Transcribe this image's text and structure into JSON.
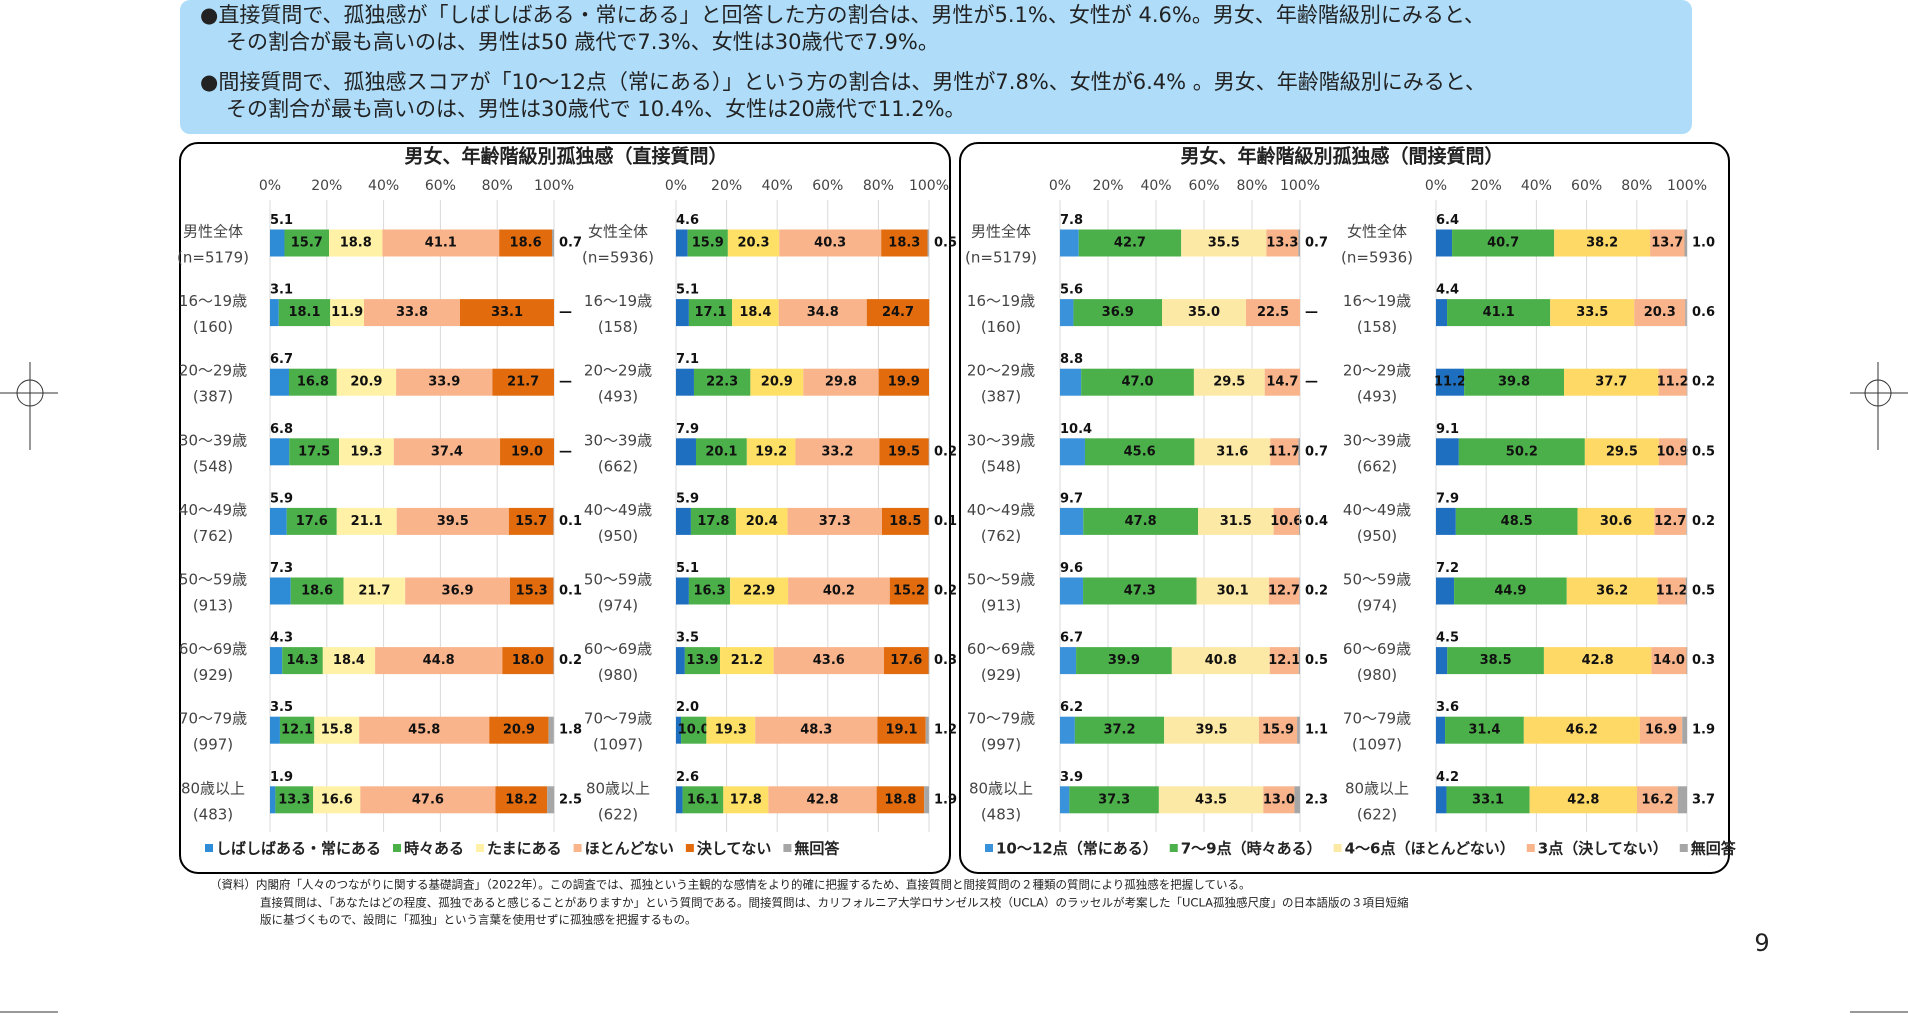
{
  "bullets": [
    [
      "●直接質問で、孤独感が「しばしばある・常にある」と回答した方の割合は、男性が5.1%、女性が 4.6%。男女、年齢階級別にみると、",
      "その割合が最も高いのは、男性は50 歳代で7.3%、女性は30歳代で7.9%。"
    ],
    [
      "●間接質問で、孤独感スコアが「10～12点（常にある）」という方の割合は、男性が7.8%、女性が6.4% 。男女、年齢階級別にみると、",
      "その割合が最も高いのは、男性は30歳代で 10.4%、女性は20歳代で11.2%。"
    ]
  ],
  "panels": [
    {
      "title": "男女、年齢階級別孤独感（直接質問）",
      "charts": [
        {
          "type": "bar",
          "orientation": "horizontal",
          "stacked": true,
          "xlim": [
            0,
            100
          ],
          "xticks": [
            {
              "value": 0,
              "label": "0%"
            },
            {
              "value": 20,
              "label": "20%"
            },
            {
              "value": 40,
              "label": "40%"
            },
            {
              "value": 60,
              "label": "60%"
            },
            {
              "value": 80,
              "label": "80%"
            },
            {
              "value": 100,
              "label": "100%"
            }
          ],
          "grid": true,
          "categories": [
            "男性全体",
            "16～19歳",
            "20～29歳",
            "30～39歳",
            "40～49歳",
            "50～59歳",
            "60～69歳",
            "70～79歳",
            "80歳以上"
          ],
          "sample_sizes": [
            "(n=5179)",
            "(160)",
            "(387)",
            "(548)",
            "(762)",
            "(913)",
            "(929)",
            "(997)",
            "(483)"
          ],
          "series": [
            {
              "name": "しばしばある・常にある",
              "color": "#2e8bd6",
              "values": [
                5.1,
                3.1,
                6.7,
                6.8,
                5.9,
                7.3,
                4.3,
                3.5,
                1.9
              ]
            },
            {
              "name": "時々ある",
              "color": "#4cb04a",
              "values": [
                15.7,
                18.1,
                16.8,
                17.5,
                17.6,
                18.6,
                14.3,
                12.1,
                13.3
              ]
            },
            {
              "name": "たまにある",
              "color": "#fff1a6",
              "values": [
                18.8,
                11.9,
                20.9,
                19.3,
                21.1,
                21.7,
                18.4,
                15.8,
                16.6
              ]
            },
            {
              "name": "ほとんどない",
              "color": "#f9b48c",
              "values": [
                41.1,
                33.8,
                33.9,
                37.4,
                39.5,
                36.9,
                44.8,
                45.8,
                47.6
              ]
            },
            {
              "name": "決してない",
              "color": "#e26c0d",
              "values": [
                18.6,
                33.1,
                21.7,
                19.0,
                15.7,
                15.3,
                18.0,
                20.9,
                18.2
              ],
              "value_labels": [
                "18.6",
                "33.1",
                "21.7",
                "19.0",
                "15.7",
                "15.3",
                "18.0",
                "20.9",
                "18.2"
              ]
            },
            {
              "name": "無回答",
              "color": "#a6a6a6",
              "values": [
                0.7,
                null,
                null,
                null,
                0.1,
                0.1,
                0.2,
                1.8,
                2.5
              ],
              "value_labels": [
                "0.7",
                "—",
                "—",
                "—",
                "0.1",
                "0.1",
                "0.2",
                "1.8",
                "2.5"
              ]
            }
          ]
        },
        {
          "type": "bar",
          "orientation": "horizontal",
          "stacked": true,
          "xlim": [
            0,
            100
          ],
          "xticks": [
            {
              "value": 0,
              "label": "0%"
            },
            {
              "value": 20,
              "label": "20%"
            },
            {
              "value": 40,
              "label": "40%"
            },
            {
              "value": 60,
              "label": "60%"
            },
            {
              "value": 80,
              "label": "80%"
            },
            {
              "value": 100,
              "label": "100%"
            }
          ],
          "grid": true,
          "categories": [
            "女性全体",
            "16～19歳",
            "20～29歳",
            "30～39歳",
            "40～49歳",
            "50～59歳",
            "60～69歳",
            "70～79歳",
            "80歳以上"
          ],
          "sample_sizes": [
            "(n=5936)",
            "(158)",
            "(493)",
            "(662)",
            "(950)",
            "(974)",
            "(980)",
            "(1097)",
            "(622)"
          ],
          "series": [
            {
              "name": "しばしばある・常にある",
              "color": "#1f6fc0",
              "values": [
                4.6,
                5.1,
                7.1,
                7.9,
                5.9,
                5.1,
                3.5,
                2.0,
                2.6
              ],
              "value_labels": [
                "4.6",
                "5.1",
                "7.1",
                "7.9",
                "5.9",
                "5.1",
                "3.5",
                "2.0",
                "2.6"
              ]
            },
            {
              "name": "時々ある",
              "color": "#4cb04a",
              "values": [
                15.9,
                17.1,
                22.3,
                20.1,
                17.8,
                16.3,
                13.9,
                10.0,
                16.1
              ],
              "value_labels": [
                "15.9",
                "17.1",
                "22.3",
                "20.1",
                "17.8",
                "16.3",
                "13.9",
                "10.0",
                "16.1"
              ]
            },
            {
              "name": "たまにある",
              "color": "#ffe066",
              "values": [
                20.3,
                18.4,
                20.9,
                19.2,
                20.4,
                22.9,
                21.2,
                19.3,
                17.8
              ]
            },
            {
              "name": "ほとんどない",
              "color": "#f9b48c",
              "values": [
                40.3,
                34.8,
                29.8,
                33.2,
                37.3,
                40.2,
                43.6,
                48.3,
                42.8
              ]
            },
            {
              "name": "決してない",
              "color": "#e26c0d",
              "values": [
                18.3,
                24.7,
                19.9,
                19.5,
                18.5,
                15.2,
                17.6,
                19.1,
                18.8
              ]
            },
            {
              "name": "無回答",
              "color": "#a6a6a6",
              "values": [
                0.5,
                null,
                null,
                0.2,
                0.1,
                0.2,
                0.3,
                1.2,
                1.9
              ]
            }
          ]
        }
      ]
    },
    {
      "title": "男女、年齢階級別孤独感（間接質問）",
      "charts": [
        {
          "type": "bar",
          "orientation": "horizontal",
          "stacked": true,
          "xlim": [
            0,
            100
          ],
          "xticks": [
            {
              "value": 0,
              "label": "0%"
            },
            {
              "value": 20,
              "label": "20%"
            },
            {
              "value": 40,
              "label": "40%"
            },
            {
              "value": 60,
              "label": "60%"
            },
            {
              "value": 80,
              "label": "80%"
            },
            {
              "value": 100,
              "label": "100%"
            }
          ],
          "grid": true,
          "categories": [
            "男性全体",
            "16～19歳",
            "20～29歳",
            "30～39歳",
            "40～49歳",
            "50～59歳",
            "60～69歳",
            "70～79歳",
            "80歳以上"
          ],
          "sample_sizes": [
            "(n=5179)",
            "(160)",
            "(387)",
            "(548)",
            "(762)",
            "(913)",
            "(929)",
            "(997)",
            "(483)"
          ],
          "series": [
            {
              "name": "10～12点（常にある）",
              "color": "#3a92db",
              "values": [
                7.8,
                5.6,
                8.8,
                10.4,
                9.7,
                9.6,
                6.7,
                6.2,
                3.9
              ]
            },
            {
              "name": "7～9点（時々ある）",
              "color": "#4cb04a",
              "values": [
                42.7,
                36.9,
                47.0,
                45.6,
                47.8,
                47.3,
                39.9,
                37.2,
                37.3
              ],
              "value_labels": [
                "42.7",
                "36.9",
                "47.0",
                "45.6",
                "47.8",
                "47.3",
                "39.9",
                "37.2",
                "37.3"
              ]
            },
            {
              "name": "4～6点（ほとんどない）",
              "color": "#fde9a6",
              "values": [
                35.5,
                35.0,
                29.5,
                31.6,
                31.5,
                30.1,
                40.8,
                39.5,
                43.5
              ],
              "value_labels": [
                "35.5",
                "35.0",
                "29.5",
                "31.6",
                "31.5",
                "30.1",
                "40.8",
                "39.5",
                "43.5"
              ]
            },
            {
              "name": "3点（決してない）",
              "color": "#f9b48c",
              "values": [
                13.3,
                22.5,
                14.7,
                11.7,
                10.6,
                12.7,
                12.1,
                15.9,
                13.0
              ],
              "value_labels": [
                "13.3",
                "22.5",
                "14.7",
                "11.7",
                "10.6",
                "12.7",
                "12.1",
                "15.9",
                "13.0"
              ]
            },
            {
              "name": "無回答",
              "color": "#a6a6a6",
              "values": [
                0.7,
                null,
                null,
                0.7,
                0.4,
                0.2,
                0.5,
                1.1,
                2.3
              ],
              "value_labels": [
                "0.7",
                "—",
                "—",
                "0.7",
                "0.4",
                "0.2",
                "0.5",
                "1.1",
                "2.3"
              ]
            }
          ]
        },
        {
          "type": "bar",
          "orientation": "horizontal",
          "stacked": true,
          "xlim": [
            0,
            100
          ],
          "xticks": [
            {
              "value": 0,
              "label": "0%"
            },
            {
              "value": 20,
              "label": "20%"
            },
            {
              "value": 40,
              "label": "40%"
            },
            {
              "value": 60,
              "label": "60%"
            },
            {
              "value": 80,
              "label": "80%"
            },
            {
              "value": 100,
              "label": "100%"
            }
          ],
          "grid": true,
          "categories": [
            "女性全体",
            "16～19歳",
            "20～29歳",
            "30～39歳",
            "40～49歳",
            "50～59歳",
            "60～69歳",
            "70～79歳",
            "80歳以上"
          ],
          "sample_sizes": [
            "(n=5936)",
            "(158)",
            "(493)",
            "(662)",
            "(950)",
            "(974)",
            "(980)",
            "(1097)",
            "(622)"
          ],
          "series": [
            {
              "name": "10～12点（常にある）",
              "color": "#1f6fc0",
              "values": [
                6.4,
                4.4,
                11.2,
                9.1,
                7.9,
                7.2,
                4.5,
                3.6,
                4.2
              ]
            },
            {
              "name": "7～9点（時々ある）",
              "color": "#4cb04a",
              "values": [
                40.7,
                41.1,
                39.8,
                50.2,
                48.5,
                44.9,
                38.5,
                31.4,
                33.1
              ]
            },
            {
              "name": "4～6点（ほとんどない）",
              "color": "#ffd966",
              "values": [
                38.2,
                33.5,
                37.7,
                29.5,
                30.6,
                36.2,
                42.8,
                46.2,
                42.8
              ]
            },
            {
              "name": "3点（決してない）",
              "color": "#f9b48c",
              "values": [
                13.7,
                20.3,
                11.2,
                10.9,
                12.7,
                11.2,
                14.0,
                16.9,
                16.2
              ],
              "value_labels": [
                "13.7",
                "20.3",
                "11.2",
                "10.9",
                "12.7",
                "11.2",
                "14.0",
                "16.9",
                "16.2"
              ]
            },
            {
              "name": "無回答",
              "color": "#a6a6a6",
              "values": [
                1.0,
                0.6,
                0.2,
                0.5,
                0.2,
                0.5,
                0.3,
                1.9,
                3.7
              ],
              "value_labels": [
                "1.0",
                "0.6",
                "0.2",
                "0.5",
                "0.2",
                "0.5",
                "0.3",
                "1.9",
                "3.7"
              ]
            }
          ]
        }
      ]
    }
  ],
  "footnote": [
    "（資料）内閣府「人々のつながりに関する基礎調査」（2022年）。この調査では、孤独という主観的な感情をより的確に把握するため、直接質問と間接質問の２種類の質問により孤独感を把握している。",
    "直接質問は、「あなたはどの程度、孤独であると感じることがありますか」という質問である。間接質問は、カリフォルニア大学ロサンゼルス校（UCLA）のラッセルが考案した「UCLA孤独感尺度」の日本語版の３項目短縮",
    "版に基づくもので、設問に「孤独」という言葉を使用せずに孤独感を把握するもの。"
  ],
  "page_number": "9"
}
